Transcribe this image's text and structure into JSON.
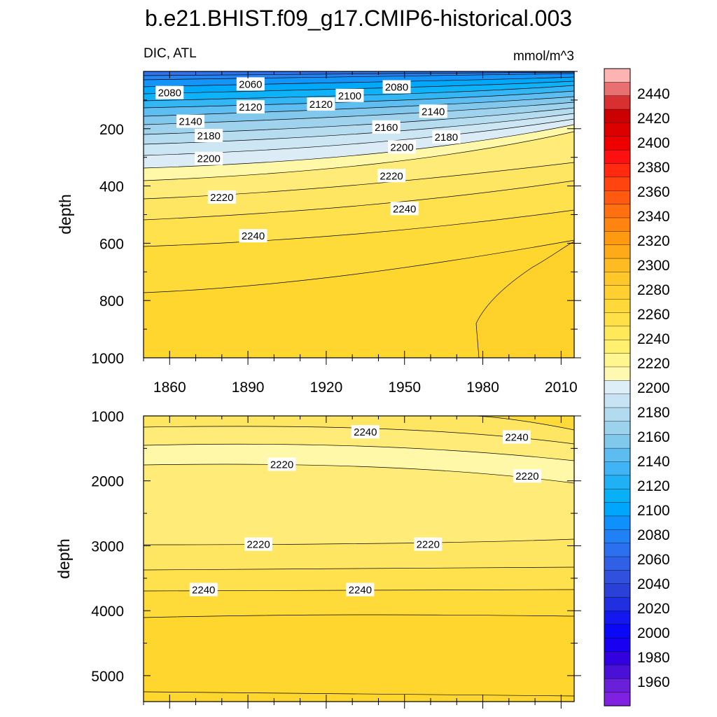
{
  "chart_data": [
    {
      "type": "heatmap",
      "panel": "upper",
      "title": "b.e21.BHIST.f09_g17.CMIP6-historical.003",
      "left_label": "DIC, ATL",
      "right_label": "mmol/m^3",
      "ylabel": "depth",
      "xlim": [
        1850,
        2015
      ],
      "ylim": [
        1000,
        0
      ],
      "xticks": [
        "1860",
        "1890",
        "1920",
        "1950",
        "1980",
        "2010"
      ],
      "yticks": [
        "200",
        "400",
        "600",
        "800",
        "1000"
      ],
      "contour_labels": [
        {
          "text": "2060",
          "x": 1891,
          "y": 45
        },
        {
          "text": "2080",
          "x": 1860,
          "y": 75
        },
        {
          "text": "2080",
          "x": 1947,
          "y": 55
        },
        {
          "text": "2100",
          "x": 1929,
          "y": 85
        },
        {
          "text": "2120",
          "x": 1891,
          "y": 125
        },
        {
          "text": "2120",
          "x": 1918,
          "y": 115
        },
        {
          "text": "2140",
          "x": 1868,
          "y": 175
        },
        {
          "text": "2140",
          "x": 1961,
          "y": 140
        },
        {
          "text": "2160",
          "x": 1943,
          "y": 195
        },
        {
          "text": "2180",
          "x": 1875,
          "y": 225
        },
        {
          "text": "2180",
          "x": 1966,
          "y": 230
        },
        {
          "text": "2200",
          "x": 1875,
          "y": 305
        },
        {
          "text": "2200",
          "x": 1949,
          "y": 265
        },
        {
          "text": "2220",
          "x": 1880,
          "y": 440
        },
        {
          "text": "2220",
          "x": 1945,
          "y": 365
        },
        {
          "text": "2240",
          "x": 1892,
          "y": 575
        },
        {
          "text": "2240",
          "x": 1950,
          "y": 480
        }
      ]
    },
    {
      "type": "heatmap",
      "panel": "lower",
      "ylabel": "depth",
      "xlim": [
        1850,
        2015
      ],
      "ylim": [
        5400,
        1000
      ],
      "yticks": [
        "1000",
        "2000",
        "3000",
        "4000",
        "5000"
      ],
      "contour_labels": [
        {
          "text": "2240",
          "x": 1935,
          "y": 1250
        },
        {
          "text": "2240",
          "x": 1993,
          "y": 1330
        },
        {
          "text": "2220",
          "x": 1903,
          "y": 1750
        },
        {
          "text": "2220",
          "x": 1997,
          "y": 1930
        },
        {
          "text": "2220",
          "x": 1894,
          "y": 2980
        },
        {
          "text": "2220",
          "x": 1959,
          "y": 2980
        },
        {
          "text": "2240",
          "x": 1873,
          "y": 3680
        },
        {
          "text": "2240",
          "x": 1933,
          "y": 3680
        }
      ]
    }
  ],
  "colorbar": {
    "labels": [
      "2440",
      "2420",
      "2400",
      "2380",
      "2360",
      "2340",
      "2320",
      "2300",
      "2280",
      "2260",
      "2240",
      "2220",
      "2200",
      "2180",
      "2160",
      "2140",
      "2120",
      "2100",
      "2080",
      "2060",
      "2040",
      "2020",
      "2000",
      "1980",
      "1960"
    ],
    "colors": [
      "#ffb4b4",
      "#e87070",
      "#d83030",
      "#cc0000",
      "#dc0000",
      "#ee0000",
      "#ff1010",
      "#ff2a10",
      "#ff4410",
      "#ff5a10",
      "#ff7010",
      "#ff8510",
      "#ff9a10",
      "#ffaa18",
      "#ffbb22",
      "#ffc82a",
      "#ffd030",
      "#ffd83a",
      "#ffe048",
      "#ffe85a",
      "#fff070",
      "#fff690",
      "#fff8b0",
      "#ddeef8",
      "#c8e4f4",
      "#b2dbf0",
      "#9cd2ec",
      "#80c8ec",
      "#5ebdf0",
      "#40b4f4",
      "#20b0f6",
      "#08b0f8",
      "#00a6fb",
      "#1090fa",
      "#2080f5",
      "#2a70ef",
      "#3060e6",
      "#3050dd",
      "#2a40d6",
      "#2030e0",
      "#1418ee",
      "#0a08f4",
      "#1a00f0",
      "#3300e0",
      "#4a10d8",
      "#6a20d8",
      "#8020e0"
    ]
  }
}
